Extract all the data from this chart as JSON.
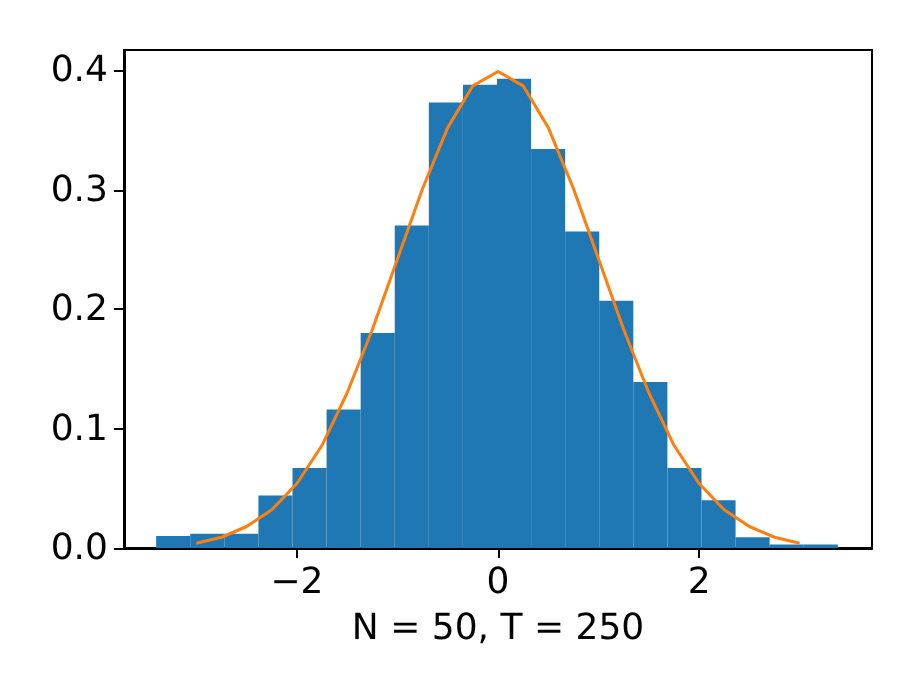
{
  "chart_data": {
    "type": "histogram",
    "xlabel": "N = 50, T = 250",
    "color": "#1f77b4",
    "bins": [
      -3.4,
      -3.061,
      -2.722,
      -2.383,
      -2.044,
      -1.705,
      -1.366,
      -1.027,
      -0.688,
      -0.349,
      -0.01,
      0.329,
      0.668,
      1.007,
      1.346,
      1.685,
      2.024,
      2.363,
      2.702,
      3.041,
      3.38
    ],
    "values": [
      0.01,
      0.012,
      0.012,
      0.044,
      0.067,
      0.116,
      0.18,
      0.27,
      0.373,
      0.388,
      0.393,
      0.334,
      0.265,
      0.207,
      0.139,
      0.067,
      0.04,
      0.009,
      0.003,
      0.003
    ],
    "series": [
      {
        "type": "line",
        "color": "#ff7f0e",
        "x": [
          -3,
          -2.75,
          -2.5,
          -2.25,
          -2,
          -1.75,
          -1.5,
          -1.25,
          -1,
          -0.75,
          -0.5,
          -0.25,
          0,
          0.25,
          0.5,
          0.75,
          1,
          1.25,
          1.5,
          1.75,
          2,
          2.25,
          2.5,
          2.75,
          3
        ],
        "values": [
          0.004,
          0.009,
          0.018,
          0.032,
          0.054,
          0.086,
          0.13,
          0.183,
          0.242,
          0.301,
          0.352,
          0.387,
          0.399,
          0.387,
          0.352,
          0.301,
          0.242,
          0.183,
          0.13,
          0.086,
          0.054,
          0.032,
          0.018,
          0.009,
          0.004
        ]
      }
    ],
    "xlim": [
      -3.72,
      3.72
    ],
    "xticks": [
      {
        "value": -2,
        "label": "−2"
      },
      0,
      2
    ],
    "ylim": [
      0,
      0.417
    ],
    "yticks": [
      {
        "value": 0,
        "label": "0.0"
      },
      0.1,
      0.2,
      0.3,
      0.4
    ]
  }
}
